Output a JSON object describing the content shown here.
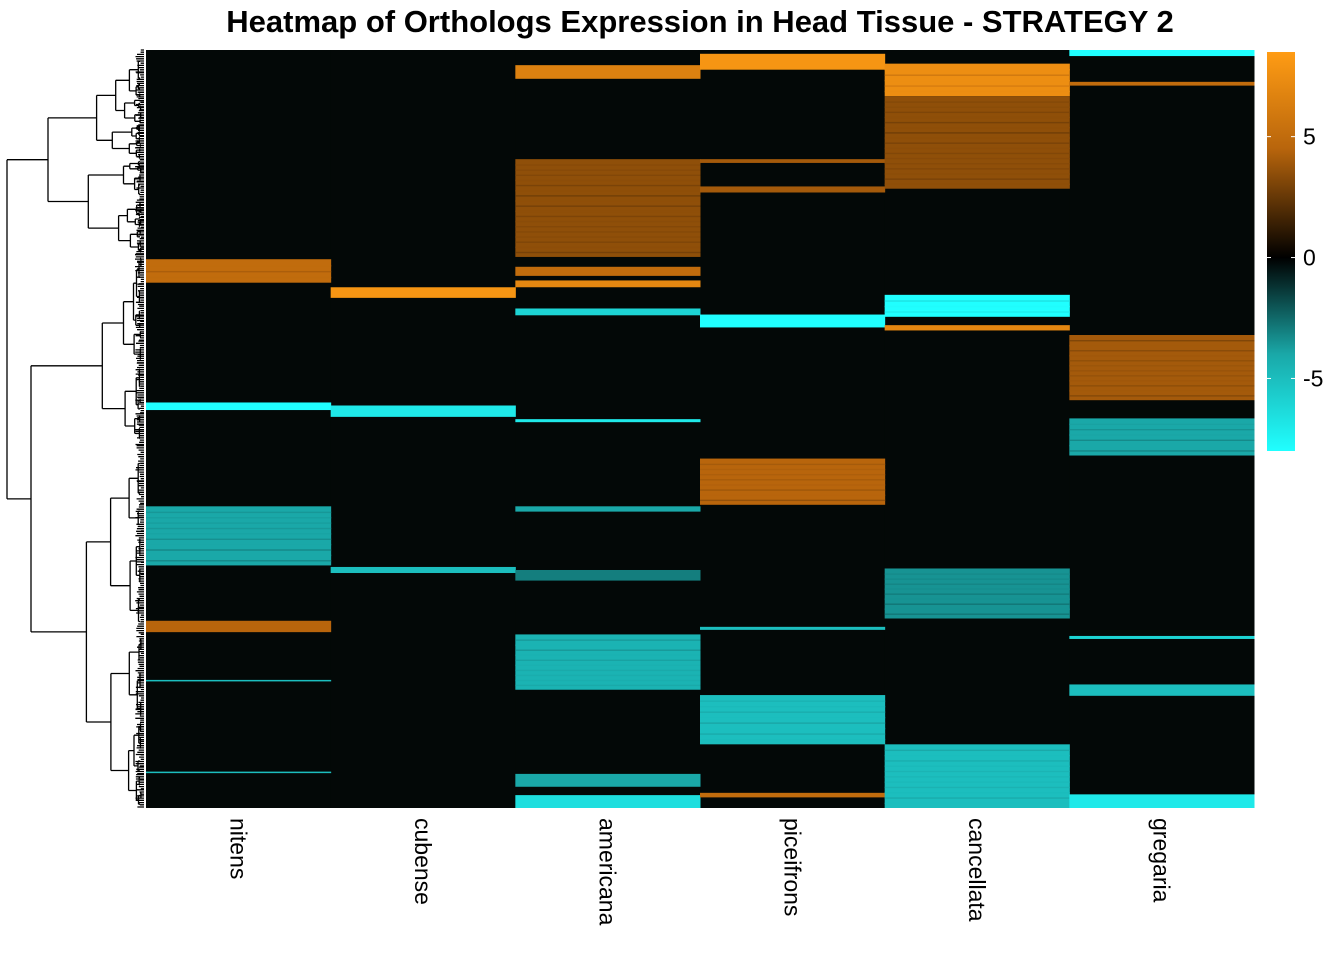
{
  "chart_data": {
    "type": "heatmap",
    "title": "Heatmap of Orthologs Expression in Head Tissue - STRATEGY 2",
    "columns": [
      "nitens",
      "cubense",
      "americana",
      "piceifrons",
      "cancellata",
      "gregaria"
    ],
    "row_count": 1000,
    "color_scale": {
      "min": -8,
      "max": 8.5,
      "stops": [
        {
          "value": -8,
          "color": "#20ffff"
        },
        {
          "value": -4,
          "color": "#1aa8a8"
        },
        {
          "value": 0,
          "color": "#000000"
        },
        {
          "value": 4.5,
          "color": "#b8650c"
        },
        {
          "value": 8.5,
          "color": "#ff9c14"
        }
      ],
      "ticks": [
        5,
        0,
        -5
      ],
      "tick_labels": [
        "5",
        "0",
        "-5"
      ]
    },
    "blocks": [
      {
        "column": "nitens",
        "from_row": 276,
        "to_row": 307,
        "value": 5
      },
      {
        "column": "nitens",
        "from_row": 465,
        "to_row": 475,
        "value": -8
      },
      {
        "column": "nitens",
        "from_row": 602,
        "to_row": 680,
        "value": -4
      },
      {
        "column": "nitens",
        "from_row": 753,
        "to_row": 768,
        "value": 4.5
      },
      {
        "column": "nitens",
        "from_row": 831,
        "to_row": 833,
        "value": -5
      },
      {
        "column": "nitens",
        "from_row": 952,
        "to_row": 954,
        "value": -5
      },
      {
        "column": "cubense",
        "from_row": 313,
        "to_row": 327,
        "value": 8
      },
      {
        "column": "cubense",
        "from_row": 469,
        "to_row": 484,
        "value": -7
      },
      {
        "column": "cubense",
        "from_row": 682,
        "to_row": 690,
        "value": -5
      },
      {
        "column": "americana",
        "from_row": 20,
        "to_row": 38,
        "value": 6.5
      },
      {
        "column": "americana",
        "from_row": 144,
        "to_row": 273,
        "value": 3.5
      },
      {
        "column": "americana",
        "from_row": 286,
        "to_row": 298,
        "value": 5
      },
      {
        "column": "americana",
        "from_row": 304,
        "to_row": 313,
        "value": 7
      },
      {
        "column": "americana",
        "from_row": 341,
        "to_row": 350,
        "value": -6
      },
      {
        "column": "americana",
        "from_row": 487,
        "to_row": 491,
        "value": -7
      },
      {
        "column": "americana",
        "from_row": 602,
        "to_row": 609,
        "value": -4
      },
      {
        "column": "americana",
        "from_row": 686,
        "to_row": 700,
        "value": -3
      },
      {
        "column": "americana",
        "from_row": 771,
        "to_row": 844,
        "value": -4.5
      },
      {
        "column": "americana",
        "from_row": 955,
        "to_row": 972,
        "value": -4
      },
      {
        "column": "americana",
        "from_row": 983,
        "to_row": 1000,
        "value": -6.5
      },
      {
        "column": "piceifrons",
        "from_row": 5,
        "to_row": 26,
        "value": 8
      },
      {
        "column": "piceifrons",
        "from_row": 144,
        "to_row": 149,
        "value": 4
      },
      {
        "column": "piceifrons",
        "from_row": 180,
        "to_row": 188,
        "value": 4
      },
      {
        "column": "piceifrons",
        "from_row": 349,
        "to_row": 366,
        "value": -8
      },
      {
        "column": "piceifrons",
        "from_row": 539,
        "to_row": 600,
        "value": 4.5
      },
      {
        "column": "piceifrons",
        "from_row": 761,
        "to_row": 765,
        "value": -5
      },
      {
        "column": "piceifrons",
        "from_row": 851,
        "to_row": 916,
        "value": -5
      },
      {
        "column": "piceifrons",
        "from_row": 980,
        "to_row": 986,
        "value": 5
      },
      {
        "column": "cancellata",
        "from_row": 18,
        "to_row": 61,
        "value": 7.5
      },
      {
        "column": "cancellata",
        "from_row": 61,
        "to_row": 183,
        "value": 3.5
      },
      {
        "column": "cancellata",
        "from_row": 323,
        "to_row": 352,
        "value": -8
      },
      {
        "column": "cancellata",
        "from_row": 363,
        "to_row": 370,
        "value": 7
      },
      {
        "column": "cancellata",
        "from_row": 684,
        "to_row": 750,
        "value": -3.5
      },
      {
        "column": "cancellata",
        "from_row": 916,
        "to_row": 1000,
        "value": -5
      },
      {
        "column": "gregaria",
        "from_row": 0,
        "to_row": 8,
        "value": -8
      },
      {
        "column": "gregaria",
        "from_row": 42,
        "to_row": 47,
        "value": 5
      },
      {
        "column": "gregaria",
        "from_row": 376,
        "to_row": 462,
        "value": 4
      },
      {
        "column": "gregaria",
        "from_row": 486,
        "to_row": 535,
        "value": -4
      },
      {
        "column": "gregaria",
        "from_row": 773,
        "to_row": 777,
        "value": -6
      },
      {
        "column": "gregaria",
        "from_row": 837,
        "to_row": 852,
        "value": -5
      },
      {
        "column": "gregaria",
        "from_row": 982,
        "to_row": 1000,
        "value": -7
      }
    ],
    "dendrogram": "row-clustering",
    "legend_position": "right"
  }
}
